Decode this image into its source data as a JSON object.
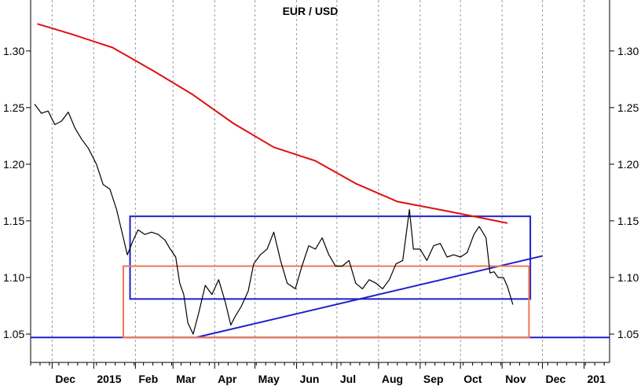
{
  "chart_data": {
    "type": "line",
    "title": "EUR / USD",
    "ylim": [
      1.025,
      1.345
    ],
    "y_ticks": [
      1.05,
      1.1,
      1.15,
      1.2,
      1.25,
      1.3
    ],
    "y_tick_labels": [
      "1.05",
      "1.10",
      "1.15",
      "1.20",
      "1.25",
      "1.30"
    ],
    "x_range": [
      "2014-11-15",
      "2016-01-20"
    ],
    "x_labels": [
      {
        "label": "Dec",
        "date": "2014-12-01"
      },
      {
        "label": "2015",
        "date": "2015-01-01"
      },
      {
        "label": "Feb",
        "date": "2015-02-01"
      },
      {
        "label": "Mar",
        "date": "2015-03-01"
      },
      {
        "label": "Apr",
        "date": "2015-04-01"
      },
      {
        "label": "May",
        "date": "2015-05-01"
      },
      {
        "label": "Jun",
        "date": "2015-06-01"
      },
      {
        "label": "Jul",
        "date": "2015-07-01"
      },
      {
        "label": "Aug",
        "date": "2015-08-01"
      },
      {
        "label": "Sep",
        "date": "2015-09-01"
      },
      {
        "label": "Oct",
        "date": "2015-10-01"
      },
      {
        "label": "Nov",
        "date": "2015-11-01"
      },
      {
        "label": "Dec",
        "date": "2015-12-01"
      },
      {
        "label": "201",
        "date": "2016-01-01"
      }
    ],
    "grid": "vertical dashed at month boundaries",
    "series": [
      {
        "color": "#000000",
        "points": [
          [
            "2014-11-18",
            1.253
          ],
          [
            "2014-11-23",
            1.245
          ],
          [
            "2014-11-28",
            1.247
          ],
          [
            "2014-12-03",
            1.235
          ],
          [
            "2014-12-08",
            1.238
          ],
          [
            "2014-12-13",
            1.246
          ],
          [
            "2014-12-18",
            1.232
          ],
          [
            "2014-12-23",
            1.222
          ],
          [
            "2014-12-28",
            1.214
          ],
          [
            "2015-01-03",
            1.2
          ],
          [
            "2015-01-08",
            1.182
          ],
          [
            "2015-01-13",
            1.178
          ],
          [
            "2015-01-18",
            1.16
          ],
          [
            "2015-01-23",
            1.135
          ],
          [
            "2015-01-26",
            1.12
          ],
          [
            "2015-01-30",
            1.132
          ],
          [
            "2015-02-03",
            1.142
          ],
          [
            "2015-02-08",
            1.138
          ],
          [
            "2015-02-13",
            1.14
          ],
          [
            "2015-02-18",
            1.138
          ],
          [
            "2015-02-23",
            1.133
          ],
          [
            "2015-02-27",
            1.125
          ],
          [
            "2015-03-03",
            1.118
          ],
          [
            "2015-03-06",
            1.095
          ],
          [
            "2015-03-09",
            1.085
          ],
          [
            "2015-03-12",
            1.06
          ],
          [
            "2015-03-16",
            1.05
          ],
          [
            "2015-03-20",
            1.068
          ],
          [
            "2015-03-25",
            1.093
          ],
          [
            "2015-03-30",
            1.085
          ],
          [
            "2015-04-04",
            1.098
          ],
          [
            "2015-04-09",
            1.078
          ],
          [
            "2015-04-13",
            1.058
          ],
          [
            "2015-04-16",
            1.065
          ],
          [
            "2015-04-21",
            1.075
          ],
          [
            "2015-04-26",
            1.088
          ],
          [
            "2015-04-30",
            1.112
          ],
          [
            "2015-05-05",
            1.12
          ],
          [
            "2015-05-10",
            1.125
          ],
          [
            "2015-05-15",
            1.14
          ],
          [
            "2015-05-20",
            1.115
          ],
          [
            "2015-05-25",
            1.095
          ],
          [
            "2015-05-31",
            1.09
          ],
          [
            "2015-06-05",
            1.11
          ],
          [
            "2015-06-10",
            1.128
          ],
          [
            "2015-06-15",
            1.125
          ],
          [
            "2015-06-20",
            1.135
          ],
          [
            "2015-06-25",
            1.12
          ],
          [
            "2015-06-30",
            1.11
          ],
          [
            "2015-07-05",
            1.11
          ],
          [
            "2015-07-10",
            1.115
          ],
          [
            "2015-07-15",
            1.095
          ],
          [
            "2015-07-20",
            1.09
          ],
          [
            "2015-07-25",
            1.098
          ],
          [
            "2015-07-30",
            1.095
          ],
          [
            "2015-08-04",
            1.09
          ],
          [
            "2015-08-09",
            1.098
          ],
          [
            "2015-08-14",
            1.112
          ],
          [
            "2015-08-19",
            1.115
          ],
          [
            "2015-08-24",
            1.16
          ],
          [
            "2015-08-27",
            1.125
          ],
          [
            "2015-09-01",
            1.125
          ],
          [
            "2015-09-06",
            1.115
          ],
          [
            "2015-09-11",
            1.128
          ],
          [
            "2015-09-16",
            1.13
          ],
          [
            "2015-09-21",
            1.118
          ],
          [
            "2015-09-26",
            1.12
          ],
          [
            "2015-10-01",
            1.118
          ],
          [
            "2015-10-06",
            1.122
          ],
          [
            "2015-10-11",
            1.138
          ],
          [
            "2015-10-15",
            1.145
          ],
          [
            "2015-10-20",
            1.135
          ],
          [
            "2015-10-23",
            1.104
          ],
          [
            "2015-10-26",
            1.105
          ],
          [
            "2015-10-29",
            1.1
          ],
          [
            "2015-11-02",
            1.1
          ],
          [
            "2015-11-05",
            1.092
          ],
          [
            "2015-11-09",
            1.076
          ]
        ]
      },
      {
        "color": "#e01010",
        "points": [
          [
            "2014-11-20",
            1.324
          ],
          [
            "2014-12-15",
            1.315
          ],
          [
            "2015-01-15",
            1.303
          ],
          [
            "2015-02-15",
            1.282
          ],
          [
            "2015-03-15",
            1.262
          ],
          [
            "2015-04-15",
            1.236
          ],
          [
            "2015-05-15",
            1.215
          ],
          [
            "2015-06-15",
            1.203
          ],
          [
            "2015-07-15",
            1.183
          ],
          [
            "2015-08-15",
            1.167
          ],
          [
            "2015-09-15",
            1.16
          ],
          [
            "2015-10-15",
            1.153
          ],
          [
            "2015-11-05",
            1.148
          ]
        ]
      }
    ],
    "annotations": [
      {
        "kind": "line",
        "color": "#2020cc",
        "from": [
          "2014-11-15",
          1.047
        ],
        "to": [
          "2016-01-20",
          1.047
        ]
      },
      {
        "kind": "line",
        "color": "#2020cc",
        "from": [
          "2015-03-18",
          1.047
        ],
        "to": [
          "2015-12-01",
          1.119
        ]
      },
      {
        "kind": "rectangle",
        "color": "#2020cc",
        "x0": "2015-01-28",
        "x1": "2015-11-22",
        "y0": 1.081,
        "y1": 1.154
      },
      {
        "kind": "rectangle",
        "color": "#f07850",
        "x0": "2015-01-23",
        "x1": "2015-11-21",
        "y0": 1.047,
        "y1": 1.11
      }
    ],
    "colors": {
      "price": "#000000",
      "moving_average": "#e01010",
      "lines": "#2020cc",
      "box_orange": "#f07850"
    }
  }
}
